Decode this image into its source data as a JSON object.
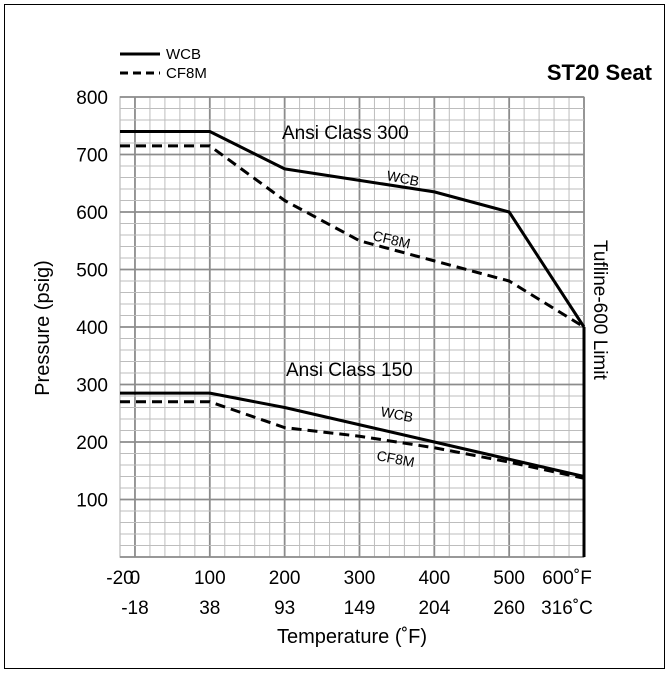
{
  "chart_data": {
    "type": "line",
    "title": "ST20 Seat",
    "xlabel": "Temperature (˚F)",
    "ylabel": "Pressure (psig)",
    "xlim": [
      -20,
      600
    ],
    "ylim": [
      0,
      800
    ],
    "grid": true,
    "legend_position": "top-left",
    "legend": [
      {
        "name": "WCB",
        "style": "solid"
      },
      {
        "name": "CF8M",
        "style": "dashed"
      }
    ],
    "x_ticks_f": [
      {
        "value": -20,
        "label": "-20"
      },
      {
        "value": 0,
        "label": "0"
      },
      {
        "value": 100,
        "label": "100"
      },
      {
        "value": 200,
        "label": "200"
      },
      {
        "value": 300,
        "label": "300"
      },
      {
        "value": 400,
        "label": "400"
      },
      {
        "value": 500,
        "label": "500"
      },
      {
        "value": 600,
        "label": "600˚F"
      }
    ],
    "x_ticks_c": [
      {
        "value": 0,
        "label": "-18"
      },
      {
        "value": 100,
        "label": "38"
      },
      {
        "value": 200,
        "label": "93"
      },
      {
        "value": 300,
        "label": "149"
      },
      {
        "value": 400,
        "label": "204"
      },
      {
        "value": 500,
        "label": "260"
      },
      {
        "value": 600,
        "label": "316˚C"
      }
    ],
    "y_ticks": [
      100,
      200,
      300,
      400,
      500,
      600,
      700,
      800
    ],
    "annotations": {
      "class300": "Ansi Class 300",
      "class150": "Ansi Class 150",
      "limit": "Tufline-600 Limit",
      "wcb300": "WCB",
      "cf8m300": "CF8M",
      "wcb150": "WCB",
      "cf8m150": "CF8M"
    },
    "limit_x": 600,
    "series": [
      {
        "name": "WCB",
        "group": "Ansi Class 300",
        "style": "solid",
        "x": [
          -20,
          100,
          200,
          300,
          400,
          500,
          600
        ],
        "y": [
          740,
          740,
          675,
          655,
          635,
          600,
          400
        ]
      },
      {
        "name": "CF8M",
        "group": "Ansi Class 300",
        "style": "dashed",
        "x": [
          -20,
          100,
          200,
          300,
          400,
          500,
          600
        ],
        "y": [
          715,
          715,
          620,
          550,
          515,
          480,
          400
        ]
      },
      {
        "name": "WCB",
        "group": "Ansi Class 150",
        "style": "solid",
        "x": [
          -20,
          100,
          200,
          300,
          400,
          500,
          600
        ],
        "y": [
          285,
          285,
          260,
          230,
          200,
          170,
          140
        ]
      },
      {
        "name": "CF8M",
        "group": "Ansi Class 150",
        "style": "dashed",
        "x": [
          -20,
          100,
          200,
          300,
          400,
          500,
          600
        ],
        "y": [
          270,
          270,
          225,
          210,
          190,
          165,
          137
        ]
      }
    ]
  }
}
